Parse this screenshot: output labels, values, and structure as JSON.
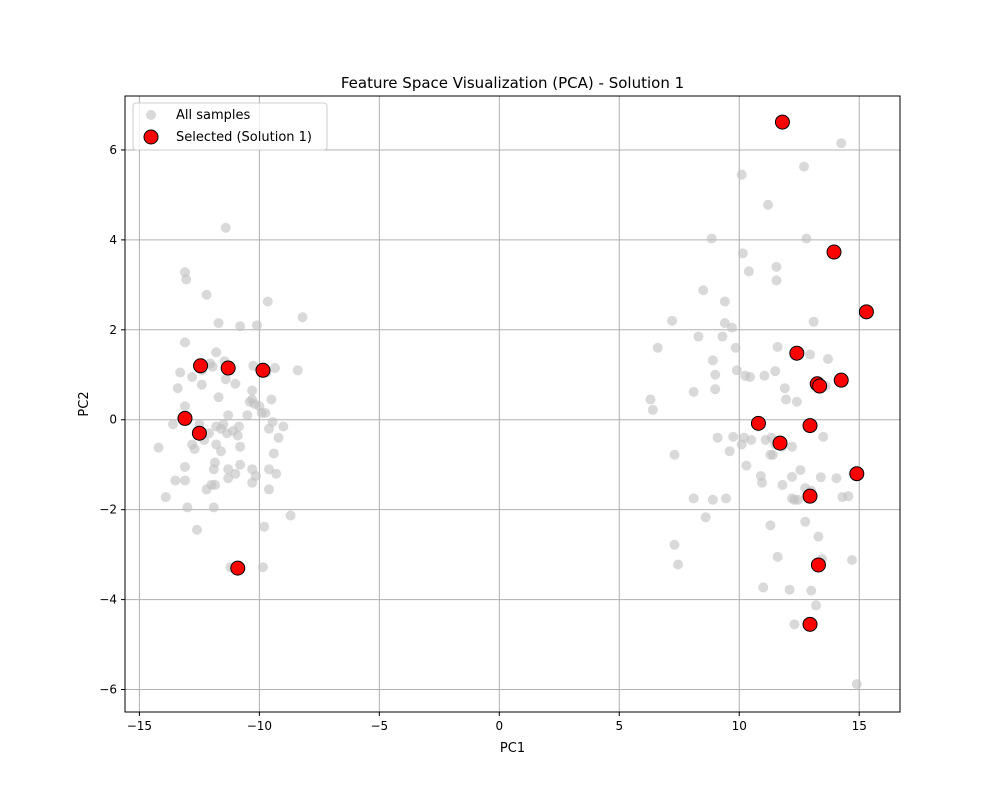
{
  "chart_data": {
    "type": "scatter",
    "title": "Feature Space Visualization (PCA) - Solution 1",
    "xlabel": "PC1",
    "ylabel": "PC2",
    "xlim": [
      -15.6,
      16.7
    ],
    "ylim": [
      -6.5,
      7.2
    ],
    "xticks": [
      -15,
      -10,
      -5,
      0,
      5,
      10,
      15
    ],
    "yticks": [
      -6,
      -4,
      -2,
      0,
      2,
      4,
      6
    ],
    "grid": true,
    "legend_position": "top-left",
    "colors": {
      "all": "#bfbfbf",
      "selected": "#ff0000",
      "edge": "#000000",
      "grid": "#b0b0b0"
    },
    "series": [
      {
        "name": "All samples",
        "points": [
          [
            -14.2,
            -0.62
          ],
          [
            -13.9,
            -1.72
          ],
          [
            -13.6,
            -0.1
          ],
          [
            -13.5,
            -1.35
          ],
          [
            -13.4,
            0.7
          ],
          [
            -13.3,
            1.05
          ],
          [
            -13.1,
            3.28
          ],
          [
            -13.05,
            3.12
          ],
          [
            -13.1,
            1.72
          ],
          [
            -13.1,
            0.3
          ],
          [
            -13.1,
            -1.05
          ],
          [
            -13.1,
            -1.35
          ],
          [
            -13.0,
            -1.95
          ],
          [
            -12.8,
            0.95
          ],
          [
            -12.8,
            -0.55
          ],
          [
            -12.7,
            -0.65
          ],
          [
            -12.6,
            -2.45
          ],
          [
            -12.5,
            -0.1
          ],
          [
            -12.4,
            1.1
          ],
          [
            -12.4,
            0.78
          ],
          [
            -12.3,
            -0.45
          ],
          [
            -12.2,
            -1.55
          ],
          [
            -12.2,
            2.78
          ],
          [
            -12.1,
            -0.3
          ],
          [
            -12.05,
            1.25
          ],
          [
            -12.0,
            -1.45
          ],
          [
            -11.95,
            1.18
          ],
          [
            -11.9,
            -1.1
          ],
          [
            -11.9,
            -1.95
          ],
          [
            -11.85,
            -0.95
          ],
          [
            -11.85,
            -1.45
          ],
          [
            -11.8,
            -0.15
          ],
          [
            -11.8,
            1.5
          ],
          [
            -11.8,
            -0.55
          ],
          [
            -11.7,
            2.15
          ],
          [
            -11.7,
            0.5
          ],
          [
            -11.6,
            -0.2
          ],
          [
            -11.6,
            -0.7
          ],
          [
            -11.5,
            -0.1
          ],
          [
            -11.45,
            1.3
          ],
          [
            -11.4,
            4.27
          ],
          [
            -11.4,
            0.9
          ],
          [
            -11.35,
            -0.3
          ],
          [
            -11.3,
            0.1
          ],
          [
            -11.3,
            -1.1
          ],
          [
            -11.3,
            -1.3
          ],
          [
            -11.2,
            -3.28
          ],
          [
            -11.1,
            -0.25
          ],
          [
            -11.0,
            0.8
          ],
          [
            -11.0,
            -1.2
          ],
          [
            -10.9,
            -0.35
          ],
          [
            -10.85,
            -0.15
          ],
          [
            -10.8,
            -0.6
          ],
          [
            -10.8,
            -1.0
          ],
          [
            -10.8,
            2.08
          ],
          [
            -10.5,
            0.1
          ],
          [
            -10.4,
            0.4
          ],
          [
            -10.3,
            0.45
          ],
          [
            -10.3,
            0.65
          ],
          [
            -10.3,
            -1.1
          ],
          [
            -10.3,
            -1.4
          ],
          [
            -10.25,
            1.2
          ],
          [
            -10.2,
            0.35
          ],
          [
            -10.15,
            -1.25
          ],
          [
            -10.1,
            2.1
          ],
          [
            -10.0,
            0.3
          ],
          [
            -9.9,
            0.15
          ],
          [
            -9.85,
            -3.28
          ],
          [
            -9.8,
            -2.38
          ],
          [
            -9.75,
            0.15
          ],
          [
            -9.7,
            1.05
          ],
          [
            -9.65,
            2.63
          ],
          [
            -9.6,
            -0.2
          ],
          [
            -9.6,
            -1.1
          ],
          [
            -9.6,
            -1.55
          ],
          [
            -9.5,
            0.45
          ],
          [
            -9.45,
            -0.05
          ],
          [
            -9.4,
            -0.75
          ],
          [
            -9.35,
            1.15
          ],
          [
            -9.3,
            -1.2
          ],
          [
            -9.2,
            -0.4
          ],
          [
            -9.0,
            -0.15
          ],
          [
            -8.7,
            -2.13
          ],
          [
            -8.4,
            1.1
          ],
          [
            -8.2,
            2.28
          ],
          [
            6.3,
            0.45
          ],
          [
            6.4,
            0.22
          ],
          [
            6.6,
            1.6
          ],
          [
            7.2,
            2.2
          ],
          [
            7.3,
            -0.78
          ],
          [
            7.3,
            -2.78
          ],
          [
            7.45,
            -3.22
          ],
          [
            8.1,
            0.62
          ],
          [
            8.1,
            -1.75
          ],
          [
            8.3,
            1.85
          ],
          [
            8.5,
            2.88
          ],
          [
            8.6,
            -2.17
          ],
          [
            8.85,
            4.03
          ],
          [
            8.9,
            1.32
          ],
          [
            8.9,
            -1.78
          ],
          [
            9.0,
            1.0
          ],
          [
            9.0,
            0.68
          ],
          [
            9.1,
            -0.4
          ],
          [
            9.3,
            1.85
          ],
          [
            9.4,
            2.63
          ],
          [
            9.4,
            2.15
          ],
          [
            9.45,
            -1.75
          ],
          [
            9.6,
            -0.7
          ],
          [
            9.7,
            2.05
          ],
          [
            9.75,
            -0.38
          ],
          [
            9.85,
            1.6
          ],
          [
            9.9,
            1.1
          ],
          [
            10.1,
            5.45
          ],
          [
            10.1,
            -0.55
          ],
          [
            10.15,
            3.7
          ],
          [
            10.2,
            -0.4
          ],
          [
            10.25,
            0.98
          ],
          [
            10.3,
            -1.02
          ],
          [
            10.4,
            3.3
          ],
          [
            10.45,
            0.95
          ],
          [
            10.5,
            -0.45
          ],
          [
            10.7,
            -0.1
          ],
          [
            10.9,
            -1.25
          ],
          [
            10.95,
            -1.4
          ],
          [
            11.0,
            -3.73
          ],
          [
            11.05,
            0.98
          ],
          [
            11.1,
            -0.45
          ],
          [
            11.2,
            4.78
          ],
          [
            11.3,
            -2.35
          ],
          [
            11.3,
            -0.78
          ],
          [
            11.35,
            -0.4
          ],
          [
            11.4,
            -0.78
          ],
          [
            11.5,
            1.08
          ],
          [
            11.5,
            -0.55
          ],
          [
            11.55,
            3.4
          ],
          [
            11.55,
            3.1
          ],
          [
            11.6,
            -3.05
          ],
          [
            11.6,
            1.62
          ],
          [
            11.8,
            -0.6
          ],
          [
            11.8,
            -1.45
          ],
          [
            11.9,
            0.7
          ],
          [
            11.95,
            0.45
          ],
          [
            12.1,
            -3.78
          ],
          [
            12.2,
            -1.27
          ],
          [
            12.2,
            -0.6
          ],
          [
            12.2,
            -1.75
          ],
          [
            12.3,
            -4.55
          ],
          [
            12.3,
            -1.78
          ],
          [
            12.4,
            0.4
          ],
          [
            12.45,
            -1.78
          ],
          [
            12.55,
            -1.12
          ],
          [
            12.7,
            5.63
          ],
          [
            12.75,
            -1.52
          ],
          [
            12.75,
            -2.27
          ],
          [
            12.8,
            4.03
          ],
          [
            12.95,
            1.45
          ],
          [
            13.0,
            -1.58
          ],
          [
            13.0,
            -3.8
          ],
          [
            13.1,
            2.18
          ],
          [
            13.2,
            -4.13
          ],
          [
            13.3,
            -2.6
          ],
          [
            13.4,
            -1.28
          ],
          [
            13.45,
            -3.1
          ],
          [
            13.5,
            -0.38
          ],
          [
            13.6,
            0.75
          ],
          [
            13.7,
            1.35
          ],
          [
            14.05,
            -1.3
          ],
          [
            14.25,
            6.15
          ],
          [
            14.3,
            -1.72
          ],
          [
            14.55,
            -1.7
          ],
          [
            14.7,
            -3.12
          ],
          [
            14.9,
            -5.88
          ]
        ]
      },
      {
        "name": "Selected (Solution 1)",
        "points": [
          [
            -13.1,
            0.03
          ],
          [
            -12.5,
            -0.3
          ],
          [
            -12.45,
            1.2
          ],
          [
            -11.3,
            1.15
          ],
          [
            -10.9,
            -3.3
          ],
          [
            -9.85,
            1.1
          ],
          [
            10.8,
            -0.08
          ],
          [
            11.7,
            -0.52
          ],
          [
            11.8,
            6.62
          ],
          [
            12.4,
            1.48
          ],
          [
            12.95,
            -0.13
          ],
          [
            12.95,
            -1.7
          ],
          [
            12.95,
            -4.55
          ],
          [
            13.25,
            0.8
          ],
          [
            13.35,
            0.75
          ],
          [
            13.3,
            -3.23
          ],
          [
            13.95,
            3.73
          ],
          [
            14.25,
            0.88
          ],
          [
            14.9,
            -1.2
          ],
          [
            15.3,
            2.4
          ]
        ]
      }
    ]
  }
}
